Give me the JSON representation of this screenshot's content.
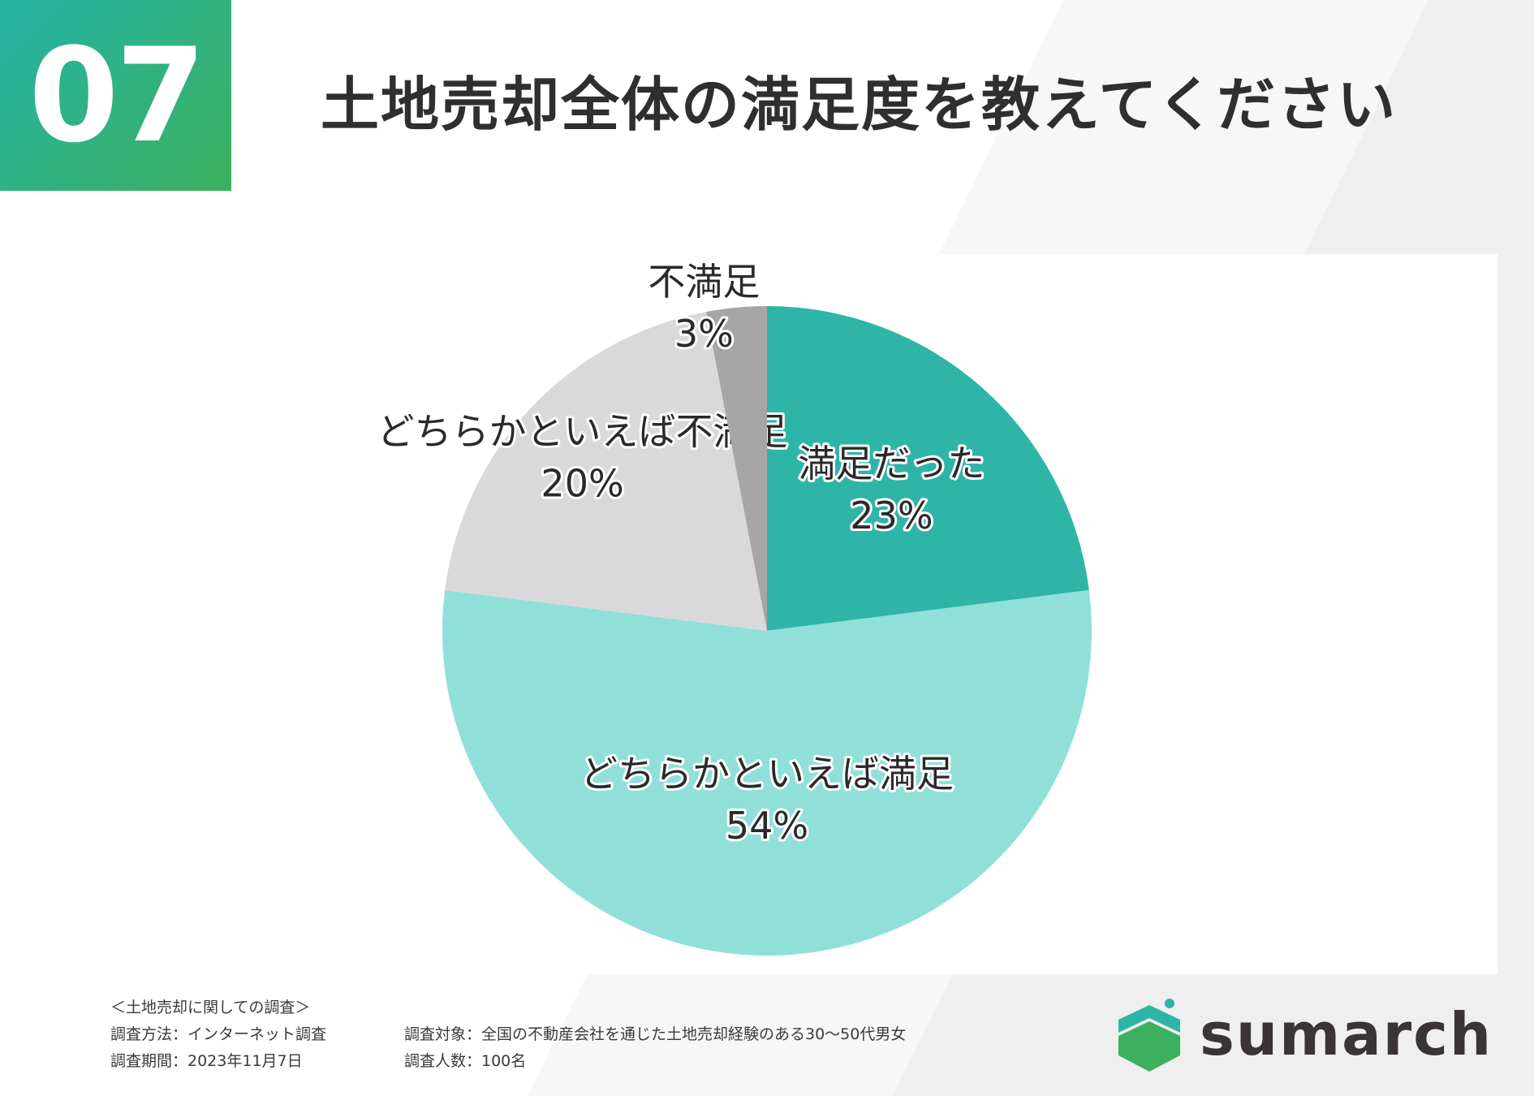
{
  "header": {
    "number": "07",
    "title": "土地売却全体の満足度を教えてください"
  },
  "chart_data": {
    "type": "pie",
    "title": "",
    "slices": [
      {
        "label": "満足だった",
        "value": 23,
        "value_label": "23%",
        "color": "#2fb5a8"
      },
      {
        "label": "どちらかといえば満足",
        "value": 54,
        "value_label": "54%",
        "color": "#90e0d9"
      },
      {
        "label": "どちらかといえば不満足",
        "value": 20,
        "value_label": "20%",
        "color": "#d9d9d9"
      },
      {
        "label": "不満足",
        "value": 3,
        "value_label": "3%",
        "color": "#a6a6a6"
      }
    ]
  },
  "footer": {
    "heading": "＜土地売却に関しての調査＞",
    "method": "調査方法：インターネット調査",
    "period": "調査期間：2023年11月7日",
    "target": "調査対象：全国の不動産会社を通じた土地売却経験のある30〜50代男女",
    "count": "調査人数：100名"
  },
  "logo": {
    "text": "sumarch",
    "icon": "house-logo-icon"
  },
  "colors": {
    "accent_teal": "#25b3a6",
    "accent_green": "#3cb05e",
    "logo_text": "#3a3434"
  }
}
